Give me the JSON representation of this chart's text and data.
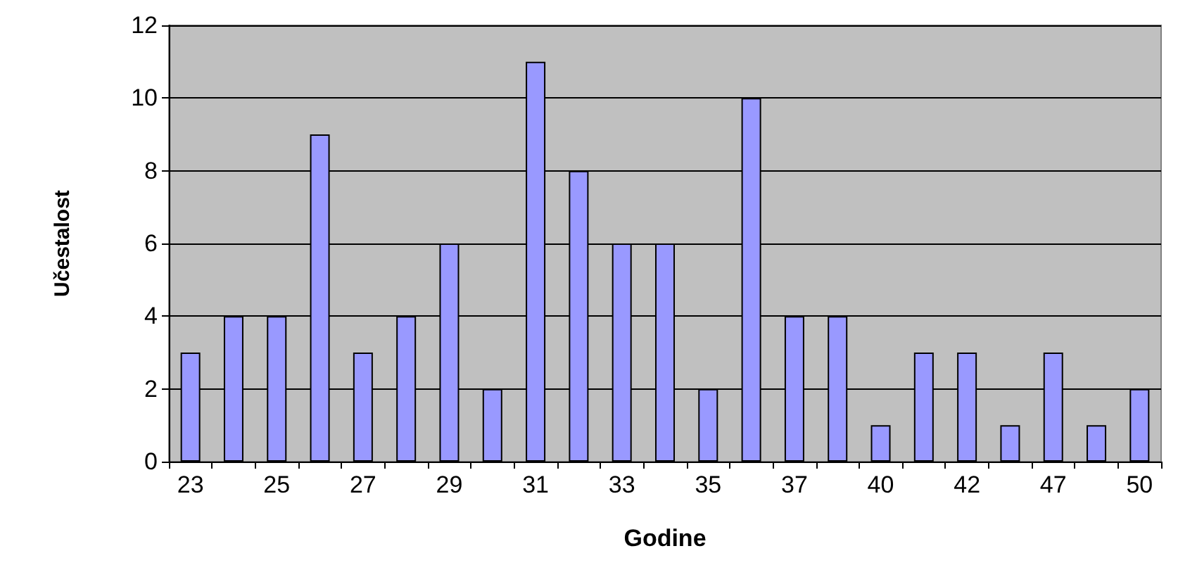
{
  "chart_data": {
    "type": "bar",
    "xlabel": "Godine",
    "ylabel": "Učestalost",
    "categories": [
      "23",
      null,
      "25",
      null,
      "27",
      null,
      "29",
      null,
      "31",
      null,
      "33",
      null,
      "35",
      null,
      "37",
      null,
      "40",
      null,
      "42",
      null,
      "47",
      null,
      "50"
    ],
    "values": [
      3,
      4,
      4,
      9,
      3,
      4,
      6,
      2,
      11,
      8,
      6,
      6,
      2,
      10,
      4,
      4,
      1,
      3,
      3,
      1,
      3,
      1,
      2
    ],
    "color": "#9999ff",
    "ylim": [
      0,
      12
    ],
    "yticks": [
      0,
      2,
      4,
      6,
      8,
      10,
      12
    ],
    "grid": "y"
  }
}
